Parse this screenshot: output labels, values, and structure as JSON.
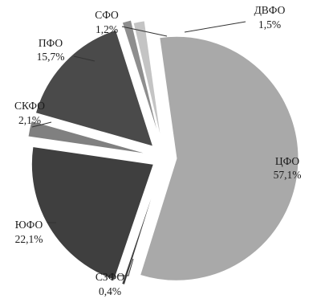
{
  "chart_data": {
    "type": "pie",
    "exploded": true,
    "legend": "none",
    "slices": [
      {
        "label": "ЦФО",
        "value": 57.1,
        "value_text": "57,1%",
        "color": "#a9a9a9"
      },
      {
        "label": "СЗФО",
        "value": 0.4,
        "value_text": "0,4%",
        "color": "#3c3c3c"
      },
      {
        "label": "ЮФО",
        "value": 22.1,
        "value_text": "22,1%",
        "color": "#3f3f3f"
      },
      {
        "label": "СКФО",
        "value": 2.1,
        "value_text": "2,1%",
        "color": "#808080"
      },
      {
        "label": "ПФО",
        "value": 15.7,
        "value_text": "15,7%",
        "color": "#4a4a4a"
      },
      {
        "label": "СФО",
        "value": 1.2,
        "value_text": "1,2%",
        "color": "#8e8e8e"
      },
      {
        "label": "ДВФО",
        "value": 1.5,
        "value_text": "1,5%",
        "color": "#c4c4c4"
      }
    ]
  }
}
